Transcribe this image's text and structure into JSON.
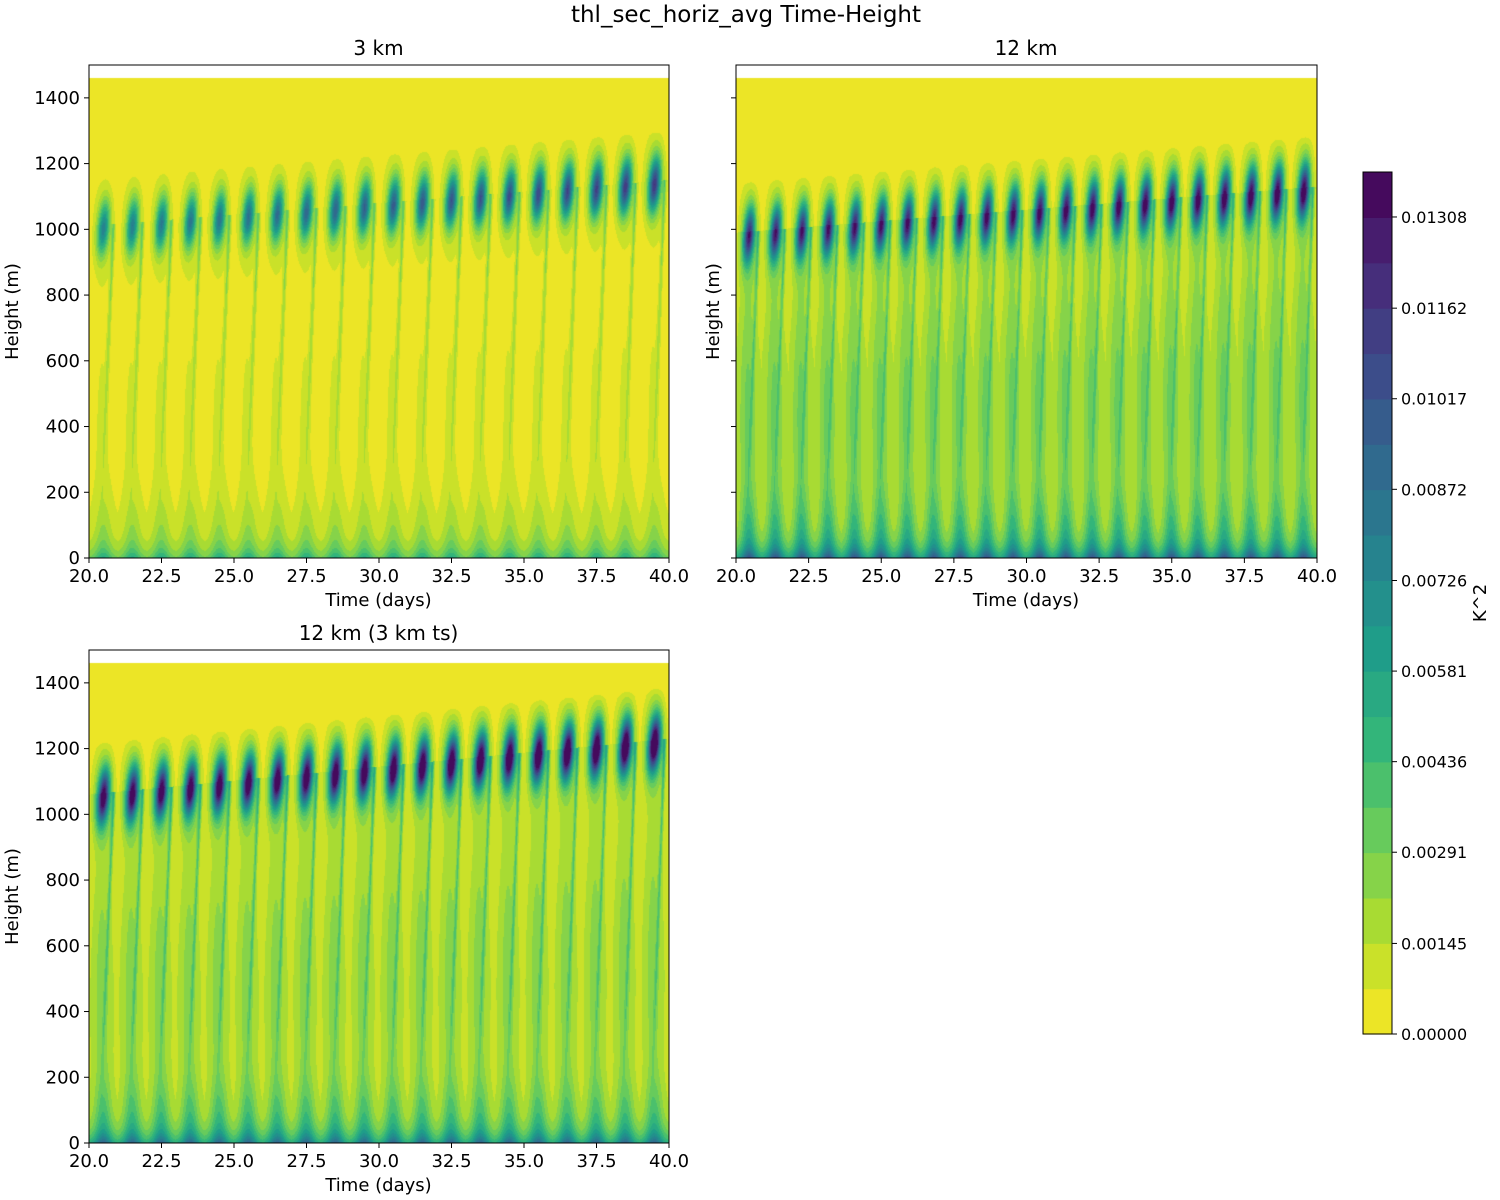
{
  "figure": {
    "title": "thl_sec_horiz_avg Time-Height"
  },
  "chart_data": [
    {
      "type": "heatmap",
      "id": "p1",
      "title": "3 km",
      "xlabel": "Time (days)",
      "ylabel": "Height (m)",
      "xlim": [
        20.0,
        40.0
      ],
      "ylim": [
        0,
        1500
      ],
      "data_top": 1460,
      "xticks": [
        "20.0",
        "22.5",
        "25.0",
        "27.5",
        "30.0",
        "32.5",
        "35.0",
        "37.5",
        "40.0"
      ],
      "xtick_values": [
        20.0,
        22.5,
        25.0,
        27.5,
        30.0,
        32.5,
        35.0,
        37.5,
        40.0
      ],
      "yticks": [
        "0",
        "200",
        "400",
        "600",
        "800",
        "1000",
        "1200",
        "1400"
      ],
      "ytick_values": [
        0,
        200,
        400,
        600,
        800,
        1000,
        1200,
        1400
      ],
      "show_ytick_labels": true,
      "cycles": 20,
      "surface_strength": 0.3,
      "mid_strength": 0.05,
      "plume_strength": 0.16,
      "cloud_base_start": 1010,
      "cloud_base_end": 1150,
      "cloud_peak_start": 0.0055,
      "cloud_peak_end": 0.0085
    },
    {
      "type": "heatmap",
      "id": "p2",
      "title": "12 km",
      "xlabel": "Time (days)",
      "ylabel": "Height (m)",
      "xlim": [
        20.0,
        40.0
      ],
      "ylim": [
        0,
        1500
      ],
      "data_top": 1460,
      "xticks": [
        "20.0",
        "22.5",
        "25.0",
        "27.5",
        "30.0",
        "32.5",
        "35.0",
        "37.5",
        "40.0"
      ],
      "xtick_values": [
        20.0,
        22.5,
        25.0,
        27.5,
        30.0,
        32.5,
        35.0,
        37.5,
        40.0
      ],
      "yticks": [
        "0",
        "200",
        "400",
        "600",
        "800",
        "1000",
        "1200",
        "1400"
      ],
      "ytick_values": [
        0,
        200,
        400,
        600,
        800,
        1000,
        1200,
        1400
      ],
      "show_ytick_labels": false,
      "cycles": 22,
      "surface_strength": 0.55,
      "mid_strength": 0.22,
      "plume_strength": 0.18,
      "cloud_base_start": 990,
      "cloud_base_end": 1130,
      "cloud_peak_start": 0.009,
      "cloud_peak_end": 0.0105
    },
    {
      "type": "heatmap",
      "id": "p3",
      "title": "12 km (3 km ts)",
      "xlabel": "Time (days)",
      "ylabel": "Height (m)",
      "xlim": [
        20.0,
        40.0
      ],
      "ylim": [
        0,
        1500
      ],
      "data_top": 1460,
      "xticks": [
        "20.0",
        "22.5",
        "25.0",
        "27.5",
        "30.0",
        "32.5",
        "35.0",
        "37.5",
        "40.0"
      ],
      "xtick_values": [
        20.0,
        22.5,
        25.0,
        27.5,
        30.0,
        32.5,
        35.0,
        37.5,
        40.0
      ],
      "yticks": [
        "0",
        "200",
        "400",
        "600",
        "800",
        "1000",
        "1200",
        "1400"
      ],
      "ytick_values": [
        0,
        200,
        400,
        600,
        800,
        1000,
        1200,
        1400
      ],
      "show_ytick_labels": true,
      "cycles": 20,
      "surface_strength": 0.5,
      "mid_strength": 0.18,
      "plume_strength": 0.22,
      "cloud_base_start": 1060,
      "cloud_base_end": 1230,
      "cloud_peak_start": 0.0105,
      "cloud_peak_end": 0.012
    }
  ],
  "colorbar": {
    "label": "K^2",
    "vmin": 0.0,
    "vmax": 0.0138,
    "levels": 19,
    "ticks": [
      "0.00000",
      "0.00145",
      "0.00291",
      "0.00436",
      "0.00581",
      "0.00726",
      "0.00872",
      "0.01017",
      "0.01162",
      "0.01308"
    ],
    "tick_values": [
      0.0,
      0.00145,
      0.00291,
      0.00436,
      0.00581,
      0.00726,
      0.00872,
      0.01017,
      0.01162,
      0.01308
    ]
  },
  "colors": {
    "viridis": [
      "#440154",
      "#482878",
      "#3e4989",
      "#31688e",
      "#26828e",
      "#1f9e89",
      "#35b779",
      "#6ece58",
      "#b5de2b",
      "#fde725"
    ],
    "axis": "#000000",
    "background": "#ffffff"
  }
}
